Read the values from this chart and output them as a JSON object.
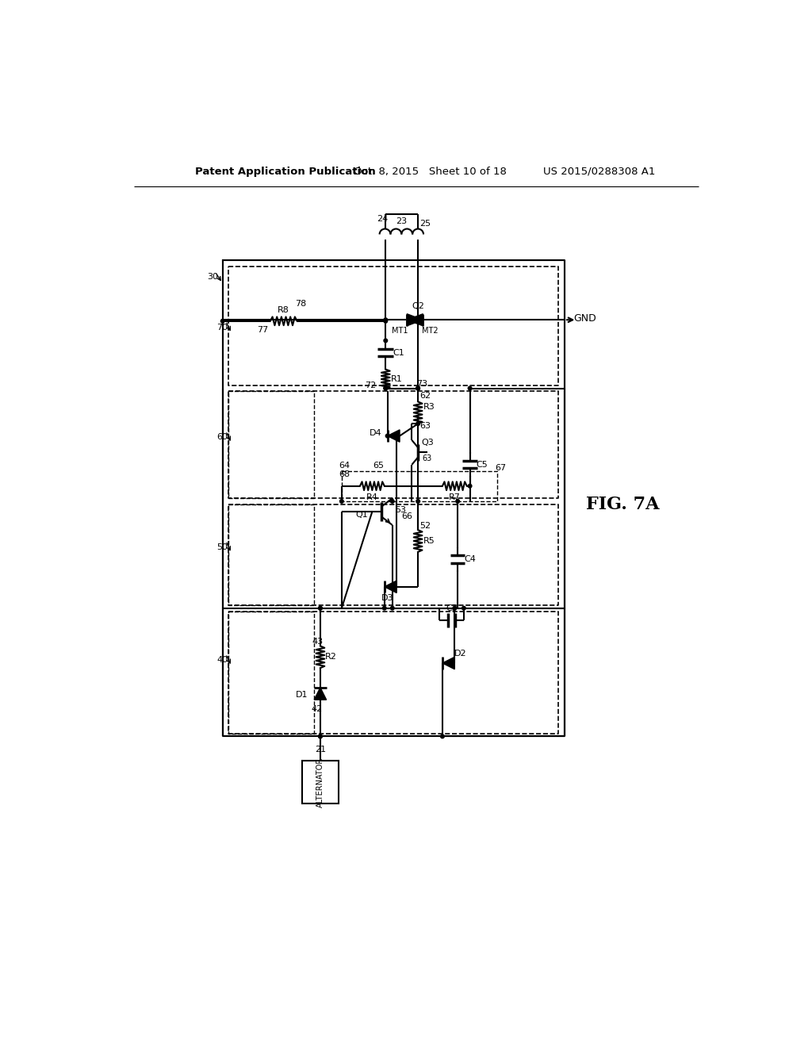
{
  "bg_color": "#ffffff",
  "header_left": "Patent Application Publication",
  "header_center": "Oct. 8, 2015   Sheet 10 of 18",
  "header_right": "US 2015/0288308 A1",
  "fig_label": "FIG. 7A"
}
